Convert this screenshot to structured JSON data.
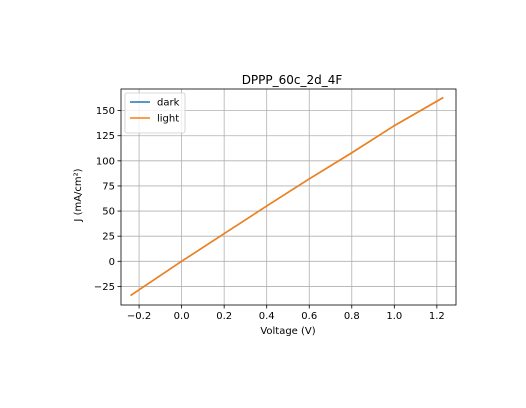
{
  "chart_data": {
    "type": "line",
    "title": "DPPP_60c_2d_4F",
    "xlabel": "Voltage (V)",
    "ylabel": "J (mA/cm²)",
    "xlim": [
      -0.285,
      1.29
    ],
    "ylim": [
      -43.5,
      171.5
    ],
    "xticks": [
      -0.2,
      0.0,
      0.2,
      0.4,
      0.6,
      0.8,
      1.0,
      1.2
    ],
    "xtick_labels": [
      "−0.2",
      "0.0",
      "0.2",
      "0.4",
      "0.6",
      "0.8",
      "1.0",
      "1.2"
    ],
    "yticks": [
      -25,
      0,
      25,
      50,
      75,
      100,
      125,
      150
    ],
    "ytick_labels": [
      "−25",
      "0",
      "25",
      "50",
      "75",
      "100",
      "125",
      "150"
    ],
    "grid": true,
    "legend_position": "upper-left",
    "series": [
      {
        "name": "dark",
        "color": "#1f77b4",
        "x": [
          -0.24,
          0.0,
          0.2,
          0.4,
          0.6,
          0.8,
          1.0,
          1.23
        ],
        "y": [
          -34,
          0,
          27.5,
          55,
          82,
          108,
          135,
          163
        ]
      },
      {
        "name": "light",
        "color": "#ff7f0e",
        "x": [
          -0.24,
          0.0,
          0.2,
          0.4,
          0.6,
          0.8,
          1.0,
          1.23
        ],
        "y": [
          -34,
          0,
          27.5,
          55,
          82,
          108,
          135,
          163
        ]
      }
    ]
  }
}
